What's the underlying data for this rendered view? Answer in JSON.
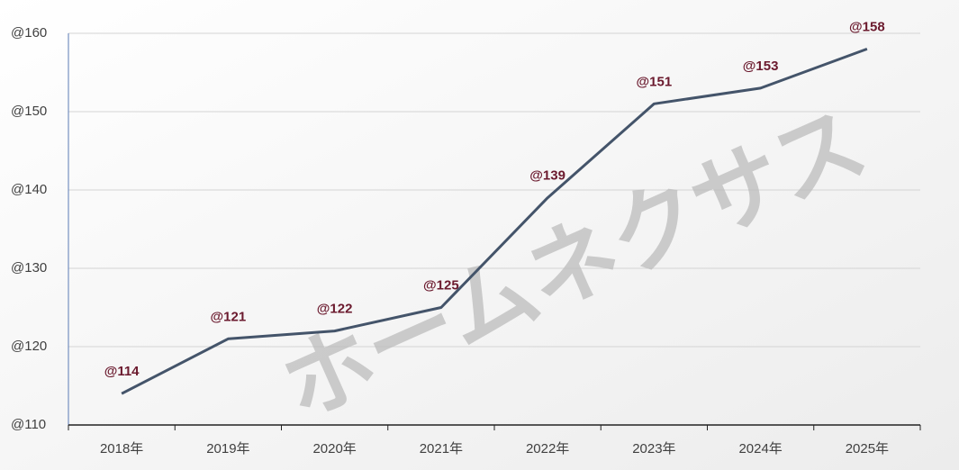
{
  "chart_data": {
    "type": "line",
    "categories": [
      "2018年",
      "2019年",
      "2020年",
      "2021年",
      "2022年",
      "2023年",
      "2024年",
      "2025年"
    ],
    "series": [
      {
        "color": "#44546a",
        "values": [
          114,
          121,
          122,
          125,
          139,
          151,
          153,
          158
        ],
        "value_labels": [
          "@114",
          "@121",
          "@122",
          "@125",
          "@139",
          "@151",
          "@153",
          "@158"
        ]
      }
    ],
    "ylim": [
      110,
      160
    ],
    "yticks": [
      {
        "value": 110,
        "label": "@110"
      },
      {
        "value": 120,
        "label": "@120"
      },
      {
        "value": 130,
        "label": "@130"
      },
      {
        "value": 140,
        "label": "@140"
      },
      {
        "value": 150,
        "label": "@150"
      },
      {
        "value": 160,
        "label": "@160"
      }
    ],
    "grid": true,
    "watermark": "ホームネクサス"
  }
}
